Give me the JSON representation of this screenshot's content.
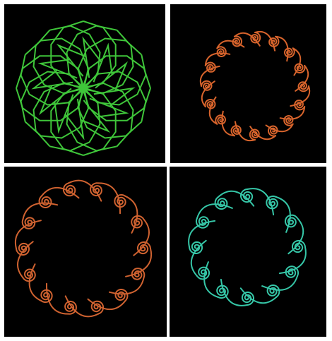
{
  "panels": [
    {
      "color": "#3fc63a"
    },
    {
      "color": "#d8642c"
    },
    {
      "color": "#cf6230"
    },
    {
      "color": "#36c7a8"
    }
  ]
}
